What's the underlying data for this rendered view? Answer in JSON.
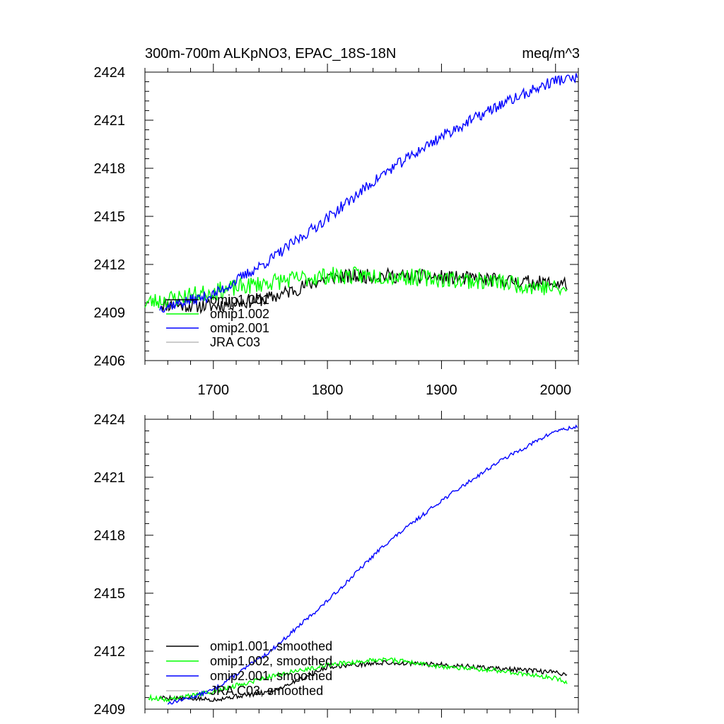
{
  "chart_data": [
    {
      "type": "line",
      "title": "300m-700m ALKpNO3, EPAC_18S-18N",
      "units": "meq/m^3",
      "xlim": [
        1640,
        2020
      ],
      "ylim": [
        2406,
        2424
      ],
      "xticks": [
        1700,
        1800,
        1900,
        2000
      ],
      "yticks": [
        2406,
        2409,
        2412,
        2415,
        2418,
        2421,
        2424
      ],
      "legend_position": "bottom-left",
      "series": [
        {
          "name": "omip1.001",
          "color": "#000000",
          "noise": 0.45,
          "seed": 11,
          "x": [
            1653,
            1700,
            1750,
            1790,
            1800,
            1850,
            1900,
            1950,
            2000,
            2010
          ],
          "y": [
            2409.5,
            2409.4,
            2409.9,
            2410.9,
            2411.2,
            2411.3,
            2411.2,
            2411.0,
            2410.8,
            2410.8
          ]
        },
        {
          "name": "omip1.002",
          "color": "#00ff00",
          "noise": 0.55,
          "seed": 23,
          "x": [
            1640,
            1700,
            1750,
            1800,
            1850,
            1900,
            1950,
            2000,
            2010
          ],
          "y": [
            2409.6,
            2410.3,
            2410.9,
            2411.3,
            2411.3,
            2411.1,
            2410.9,
            2410.5,
            2410.3
          ]
        },
        {
          "name": "omip2.001",
          "color": "#0000ff",
          "noise": 0.35,
          "seed": 37,
          "x": [
            1653,
            1700,
            1750,
            1800,
            1850,
            1900,
            1950,
            2000,
            2019
          ],
          "y": [
            2409.3,
            2410.1,
            2412.3,
            2414.9,
            2417.7,
            2420.0,
            2421.9,
            2423.5,
            2423.6
          ]
        },
        {
          "name": "JRA C03",
          "color": "#bbbbbb",
          "noise": 0,
          "seed": 1,
          "x": [],
          "y": []
        }
      ]
    },
    {
      "type": "line",
      "title": "",
      "xlim": [
        1640,
        2020
      ],
      "ylim": [
        2409,
        2424
      ],
      "xticks": [
        1700,
        1800,
        1900,
        2000
      ],
      "yticks": [
        2409,
        2412,
        2415,
        2418,
        2421,
        2424
      ],
      "legend_position": "bottom-left",
      "series": [
        {
          "name": "omip1.001, smoothed",
          "color": "#000000",
          "noise": 0.12,
          "seed": 5,
          "x": [
            1653,
            1700,
            1750,
            1790,
            1800,
            1850,
            1900,
            1950,
            2000,
            2010
          ],
          "y": [
            2409.6,
            2409.5,
            2409.9,
            2410.9,
            2411.2,
            2411.4,
            2411.3,
            2411.1,
            2410.9,
            2410.8
          ]
        },
        {
          "name": "omip1.002, smoothed",
          "color": "#00ff00",
          "noise": 0.12,
          "seed": 9,
          "x": [
            1643,
            1660,
            1700,
            1750,
            1800,
            1850,
            1900,
            1950,
            2000,
            2010
          ],
          "y": [
            2409.6,
            2409.5,
            2409.9,
            2410.7,
            2411.3,
            2411.6,
            2411.2,
            2411.0,
            2410.6,
            2410.4
          ]
        },
        {
          "name": "omip2.001, smoothed",
          "color": "#0000ff",
          "noise": 0.1,
          "seed": 13,
          "x": [
            1660,
            1680,
            1700,
            1750,
            1800,
            1850,
            1900,
            1950,
            2000,
            2019
          ],
          "y": [
            2409.3,
            2409.6,
            2410.0,
            2412.0,
            2414.6,
            2417.5,
            2419.8,
            2421.8,
            2423.4,
            2423.6
          ]
        },
        {
          "name": "JRA C03, smoothed",
          "color": "#bbbbbb",
          "noise": 0,
          "seed": 1,
          "x": [],
          "y": []
        }
      ]
    }
  ]
}
